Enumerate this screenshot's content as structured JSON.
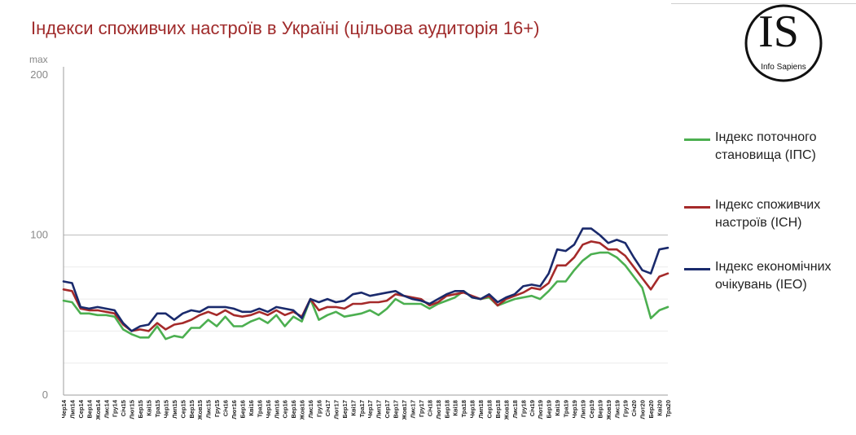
{
  "title": "Індекси споживчих настроїв в Україні (цільова аудиторія 16+)",
  "logo": {
    "big_text": "IS",
    "small_text": "Info Sapiens"
  },
  "colors": {
    "title": "#a02c2c",
    "ips": "#4caf50",
    "isn": "#a52a2a",
    "ieo": "#1a2a6c"
  },
  "chart_data": {
    "type": "line",
    "ylim": [
      0,
      200
    ],
    "y_top_label": "max",
    "y_ticks": [
      "200",
      "100",
      "0"
    ],
    "y_tick_values": [
      200,
      100,
      0
    ],
    "categories": [
      "Чер14",
      "Лип14",
      "Сер14",
      "Вер14",
      "Жов14",
      "Лис14",
      "Гру14",
      "Січ15",
      "Лют15",
      "Бер15",
      "Кві15",
      "Тра15",
      "Чер15",
      "Лип15",
      "Сер15",
      "Вер15",
      "Жов15",
      "Лис15",
      "Гру15",
      "Січ16",
      "Лют16",
      "Бер16",
      "Кві16",
      "Тра16",
      "Чер16",
      "Лип16",
      "Сер16",
      "Вер16",
      "Жов16",
      "Лис16",
      "Гру16",
      "Січ17",
      "Лют17",
      "Бер17",
      "Кві17",
      "Тра17",
      "Чер17",
      "Лип17",
      "Сер17",
      "Вер17",
      "Жов17",
      "Лис17",
      "Гру17",
      "Січ18",
      "Лют18",
      "Бер18",
      "Кві18",
      "Тра18",
      "Чер18",
      "Лип18",
      "Сер18",
      "Вер18",
      "Жов18",
      "Лис18",
      "Гру18",
      "Січ19",
      "Лют19",
      "Бер19",
      "Кві19",
      "Тра19",
      "Чер19",
      "Лип19",
      "Сер19",
      "Вер19",
      "Жов19",
      "Лис19",
      "Гру19",
      "Січ20",
      "Лют20",
      "Бер20",
      "Кві20",
      "Тра20"
    ],
    "series": [
      {
        "name": "Індекс поточного становища (ІПС)",
        "key": "ips",
        "values": [
          59,
          58,
          51,
          51,
          50,
          50,
          49,
          41,
          38,
          36,
          36,
          43,
          35,
          37,
          36,
          42,
          42,
          47,
          43,
          49,
          43,
          43,
          46,
          48,
          45,
          50,
          43,
          49,
          46,
          60,
          47,
          50,
          52,
          49,
          50,
          51,
          53,
          50,
          54,
          60,
          57,
          57,
          57,
          54,
          57,
          59,
          61,
          65,
          61,
          60,
          61,
          56,
          58,
          60,
          61,
          62,
          60,
          65,
          71,
          71,
          78,
          84,
          88,
          89,
          89,
          86,
          81,
          74,
          67,
          48,
          53,
          55
        ]
      },
      {
        "name": "Індекс споживчих настроїв (ІСН)",
        "key": "isn",
        "values": [
          66,
          65,
          54,
          53,
          53,
          52,
          51,
          44,
          40,
          41,
          40,
          45,
          41,
          44,
          45,
          47,
          50,
          52,
          50,
          53,
          50,
          49,
          50,
          52,
          50,
          53,
          50,
          52,
          49,
          60,
          53,
          55,
          55,
          54,
          57,
          57,
          58,
          58,
          59,
          63,
          62,
          61,
          60,
          56,
          58,
          62,
          63,
          64,
          62,
          60,
          62,
          56,
          60,
          62,
          64,
          67,
          66,
          70,
          81,
          81,
          86,
          94,
          96,
          95,
          91,
          91,
          87,
          80,
          73,
          66,
          74,
          76
        ]
      },
      {
        "name": "Індекс економічних очікувань (ІЕО)",
        "key": "ieo",
        "values": [
          71,
          70,
          55,
          54,
          55,
          54,
          53,
          45,
          40,
          43,
          44,
          51,
          51,
          47,
          51,
          53,
          52,
          55,
          55,
          55,
          54,
          52,
          52,
          54,
          52,
          55,
          54,
          53,
          48,
          60,
          58,
          60,
          58,
          59,
          63,
          64,
          62,
          63,
          64,
          65,
          62,
          60,
          59,
          57,
          60,
          63,
          65,
          65,
          61,
          60,
          63,
          58,
          61,
          63,
          68,
          69,
          68,
          76,
          91,
          90,
          94,
          104,
          104,
          100,
          95,
          97,
          95,
          86,
          78,
          76,
          91,
          92
        ]
      }
    ]
  }
}
